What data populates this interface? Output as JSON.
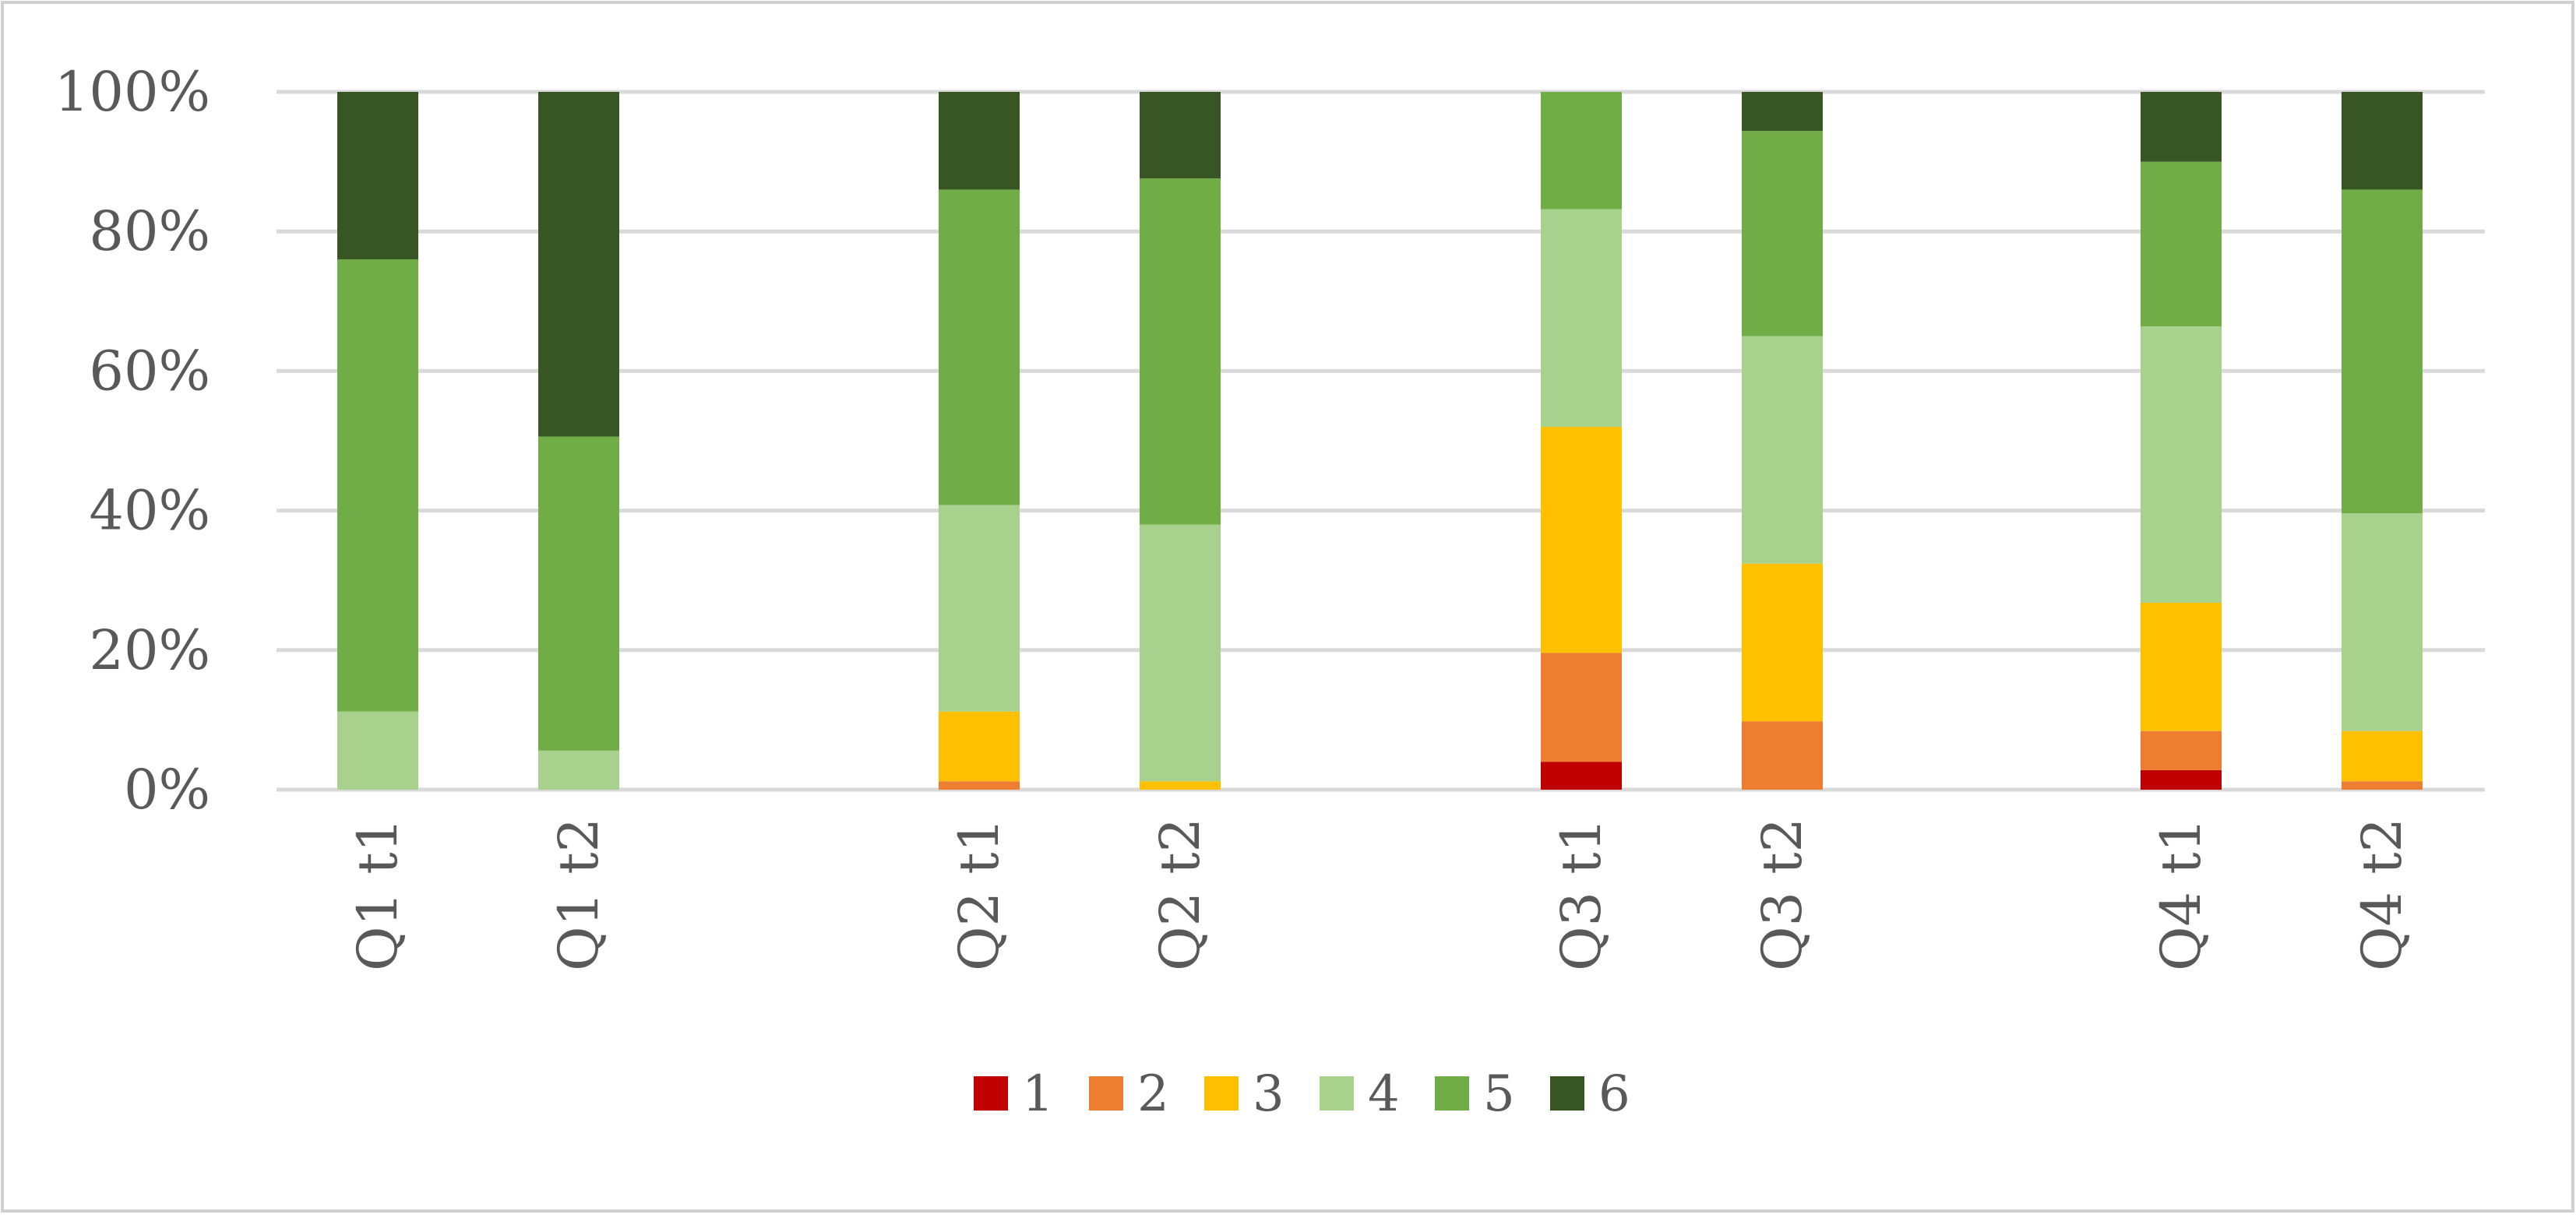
{
  "chart_data": {
    "type": "bar",
    "stacked": true,
    "percent_stacked": true,
    "categories": [
      "Q1 t1",
      "Q1 t2",
      "Q2 t1",
      "Q2 t2",
      "Q3 t1",
      "Q3 t2",
      "Q4 t1",
      "Q4 t2"
    ],
    "groups": [
      [
        "Q1 t1",
        "Q1 t2"
      ],
      [
        "Q2 t1",
        "Q2 t2"
      ],
      [
        "Q3 t1",
        "Q3 t2"
      ],
      [
        "Q4 t1",
        "Q4 t2"
      ]
    ],
    "series": [
      {
        "name": "1",
        "color": "#C00000",
        "values": [
          0,
          0,
          0,
          0,
          4,
          0,
          2.8,
          0
        ]
      },
      {
        "name": "2",
        "color": "#ED7D31",
        "values": [
          0,
          0,
          1.2,
          0,
          15.6,
          9.8,
          5.6,
          1.2
        ]
      },
      {
        "name": "3",
        "color": "#FFC000",
        "values": [
          0,
          0,
          10,
          1.2,
          32.4,
          22.6,
          18.4,
          7.2
        ]
      },
      {
        "name": "4",
        "color": "#A9D18E",
        "values": [
          11.2,
          5.6,
          29.6,
          36.8,
          31.2,
          32.6,
          39.6,
          31.2
        ]
      },
      {
        "name": "5",
        "color": "#70AD47",
        "values": [
          64.8,
          45,
          45.2,
          49.6,
          16.8,
          29.4,
          23.6,
          46.4
        ]
      },
      {
        "name": "6",
        "color": "#375623",
        "values": [
          24,
          49.4,
          14,
          12.4,
          0,
          5.6,
          10,
          14
        ]
      }
    ],
    "yticks": [
      "0%",
      "20%",
      "40%",
      "60%",
      "80%",
      "100%"
    ],
    "ylim": [
      0,
      100
    ],
    "grid": true,
    "legend_position": "bottom",
    "title": "",
    "xlabel": "",
    "ylabel": ""
  }
}
